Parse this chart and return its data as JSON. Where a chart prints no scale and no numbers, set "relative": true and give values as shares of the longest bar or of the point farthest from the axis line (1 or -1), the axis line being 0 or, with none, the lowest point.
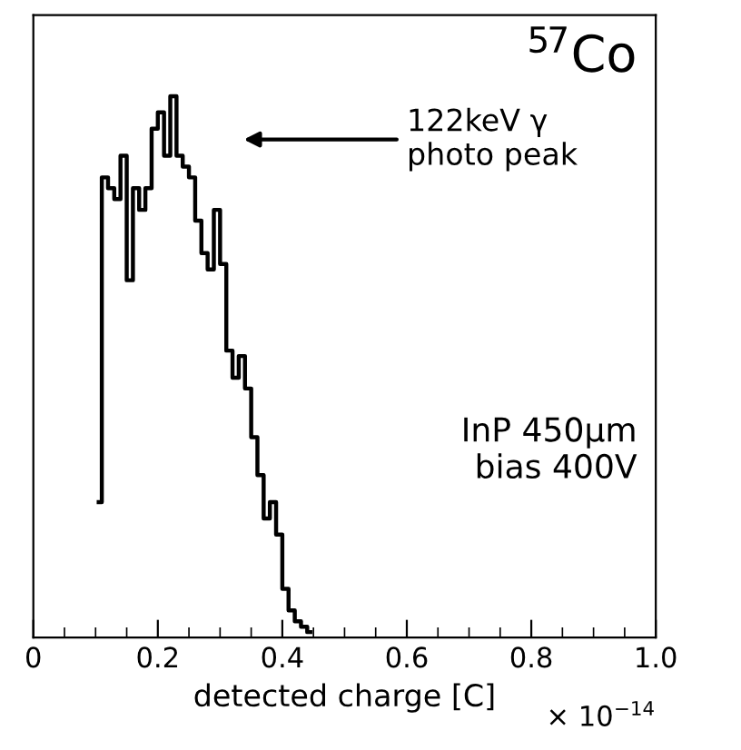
{
  "chart_data": {
    "type": "step",
    "relative": true,
    "xlabel": "detected charge [C]",
    "x": [
      0.105,
      0.115,
      0.125,
      0.135,
      0.145,
      0.155,
      0.165,
      0.175,
      0.185,
      0.195,
      0.205,
      0.215,
      0.225,
      0.235,
      0.245,
      0.255,
      0.265,
      0.275,
      0.285,
      0.295,
      0.305,
      0.315,
      0.325,
      0.335,
      0.345,
      0.355,
      0.365,
      0.375,
      0.385,
      0.395,
      0.405,
      0.415,
      0.425,
      0.435,
      0.445
    ],
    "values": [
      0.25,
      0.85,
      0.83,
      0.81,
      0.89,
      0.66,
      0.83,
      0.79,
      0.83,
      0.94,
      0.97,
      0.89,
      1,
      0.89,
      0.87,
      0.85,
      0.77,
      0.71,
      0.68,
      0.79,
      0.69,
      0.53,
      0.48,
      0.52,
      0.46,
      0.37,
      0.3,
      0.22,
      0.25,
      0.19,
      0.09,
      0.05,
      0.03,
      0.02,
      0.01
    ],
    "color": "#000000",
    "xlim": [
      0,
      1
    ],
    "xticks": [
      {
        "value": 0,
        "label": "0"
      },
      {
        "value": 0.2,
        "label": "0.2"
      },
      {
        "value": 0.4,
        "label": "0.4"
      },
      {
        "value": 0.6,
        "label": "0.6"
      },
      {
        "value": 0.8,
        "label": "0.8"
      },
      {
        "value": 1.0,
        "label": "1.0"
      }
    ],
    "annotations": [
      "$^{57}$Co",
      "122keV γ\nphoto peak",
      "InP 450μm\nbias 400V",
      "× 10$^{−14}$"
    ]
  }
}
